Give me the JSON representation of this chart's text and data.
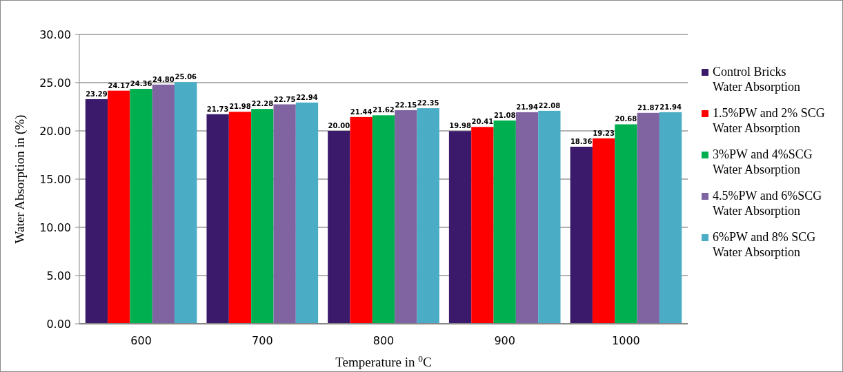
{
  "chart_data": {
    "type": "bar",
    "xlabel": "Temperature in $^{0}$C",
    "ylabel": "Water Absorption in (%)",
    "categories": [
      "600",
      "700",
      "800",
      "900",
      "1000"
    ],
    "series": [
      {
        "name": "Control Bricks Water Absorption",
        "color": "#3b1a6b",
        "values": [
          23.29,
          21.73,
          20.0,
          19.98,
          18.36
        ],
        "value_labels": [
          "23.29",
          "21.73",
          "20.00",
          "19.98",
          "18.36"
        ]
      },
      {
        "name": "1.5%PW and 2% SCG Water Absorption",
        "color": "#ff0000",
        "values": [
          24.17,
          21.98,
          21.44,
          20.41,
          19.23
        ],
        "value_labels": [
          "24.17",
          "21.98",
          "21.44",
          "20.41",
          "19.23"
        ]
      },
      {
        "name": "3%PW and 4%SCG Water Absorption",
        "color": "#00b050",
        "values": [
          24.36,
          22.28,
          21.62,
          21.08,
          20.68
        ],
        "value_labels": [
          "24.36",
          "22.28",
          "21.62",
          "21.08",
          "20.68"
        ]
      },
      {
        "name": "4.5%PW and 6%SCG Water Absorption",
        "color": "#8064a2",
        "values": [
          24.8,
          22.75,
          22.15,
          21.94,
          21.87
        ],
        "value_labels": [
          "24.80",
          "22.75",
          "22.15",
          "21.94",
          "21.87"
        ]
      },
      {
        "name": "6%PW and 8% SCG Water Absorption",
        "color": "#4bacc6",
        "values": [
          25.06,
          22.94,
          22.35,
          22.08,
          21.94
        ],
        "value_labels": [
          "25.06",
          "22.94",
          "22.35",
          "22.08",
          "21.94"
        ]
      }
    ],
    "ylim": [
      0,
      30
    ],
    "yticks": [
      {
        "value": 0,
        "label": "0.00"
      },
      {
        "value": 5,
        "label": "5.00"
      },
      {
        "value": 10,
        "label": "10.00"
      },
      {
        "value": 15,
        "label": "15.00"
      },
      {
        "value": 20,
        "label": "20.00"
      },
      {
        "value": 25,
        "label": "25.00"
      },
      {
        "value": 30,
        "label": "30.00"
      }
    ],
    "grid": "y",
    "legend": "right"
  }
}
